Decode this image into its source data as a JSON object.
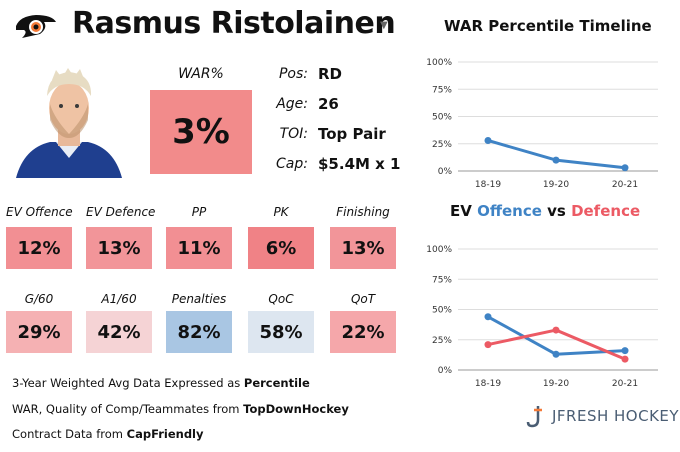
{
  "player": {
    "name": "Rasmus Ristolainen",
    "position_label": "Pos:",
    "position": "RD",
    "age_label": "Age:",
    "age": "26",
    "toi_label": "TOI:",
    "toi": "Top Pair",
    "cap_label": "Cap:",
    "cap": "$5.4M x 1"
  },
  "war": {
    "label": "WAR%",
    "value": "3%",
    "color": "#f28b8b"
  },
  "stats_row1": [
    {
      "label": "EV Offence",
      "value": "12%",
      "color": "#f28f93"
    },
    {
      "label": "EV Defence",
      "value": "13%",
      "color": "#f29599"
    },
    {
      "label": "PP",
      "value": "11%",
      "color": "#f28f93"
    },
    {
      "label": "PK",
      "value": "6%",
      "color": "#f08286"
    },
    {
      "label": "Finishing",
      "value": "13%",
      "color": "#f29599"
    }
  ],
  "stats_row2": [
    {
      "label": "G/60",
      "value": "29%",
      "color": "#f5b1b3"
    },
    {
      "label": "A1/60",
      "value": "42%",
      "color": "#f5d3d5"
    },
    {
      "label": "Penalties",
      "value": "82%",
      "color": "#a9c6e3"
    },
    {
      "label": "QoC",
      "value": "58%",
      "color": "#dde6f0"
    },
    {
      "label": "QoT",
      "value": "22%",
      "color": "#f5a7aa"
    }
  ],
  "footer": {
    "line1_prefix": "3-Year Weighted Avg Data Expressed as ",
    "line1_bold": "Percentile",
    "line2_prefix": "WAR, Quality of Comp/Teammates from ",
    "line2_bold": "TopDownHockey",
    "line3_prefix": "Contract Data from ",
    "line3_bold": "CapFriendly"
  },
  "brand": {
    "name": "JFRESH HOCKEY"
  },
  "chart_data": [
    {
      "type": "line",
      "title": "WAR Percentile Timeline",
      "categories": [
        "18-19",
        "19-20",
        "20-21"
      ],
      "series": [
        {
          "name": "WAR",
          "values": [
            28,
            10,
            3
          ],
          "color": "#3f83c5"
        }
      ],
      "ylim": [
        0,
        100
      ],
      "yticks": [
        "0%",
        "25%",
        "50%",
        "75%",
        "100%"
      ]
    },
    {
      "type": "line",
      "title_parts": {
        "offence": "Offence",
        "vs": " vs ",
        "defence": "Defence",
        "prefix": "EV "
      },
      "categories": [
        "18-19",
        "19-20",
        "20-21"
      ],
      "series": [
        {
          "name": "Offence",
          "values": [
            44,
            13,
            16
          ],
          "color": "#3f83c5"
        },
        {
          "name": "Defence",
          "values": [
            21,
            33,
            9
          ],
          "color": "#ec5a64"
        }
      ],
      "ylim": [
        0,
        100
      ],
      "yticks": [
        "0%",
        "25%",
        "50%",
        "75%",
        "100%"
      ]
    }
  ]
}
